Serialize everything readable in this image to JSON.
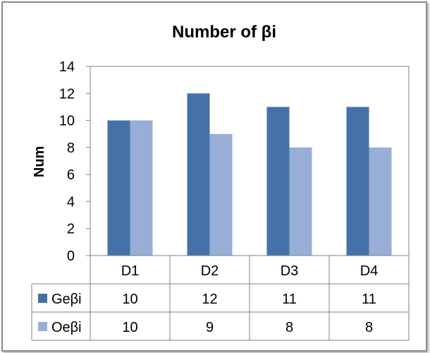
{
  "chart_data": {
    "type": "bar",
    "title": "Number of βi",
    "xlabel": "",
    "ylabel": "Num",
    "categories": [
      "D1",
      "D2",
      "D3",
      "D4"
    ],
    "series": [
      {
        "name": "Geβi",
        "values": [
          10,
          12,
          11,
          11
        ],
        "color": "#4472a8"
      },
      {
        "name": "Oeβi",
        "values": [
          10,
          9,
          8,
          8
        ],
        "color": "#98aed6"
      }
    ],
    "ylim": [
      0,
      14
    ],
    "yticks": [
      "0",
      "2",
      "4",
      "6",
      "8",
      "10",
      "12",
      "14"
    ],
    "grid": false,
    "legend": "data-table"
  }
}
